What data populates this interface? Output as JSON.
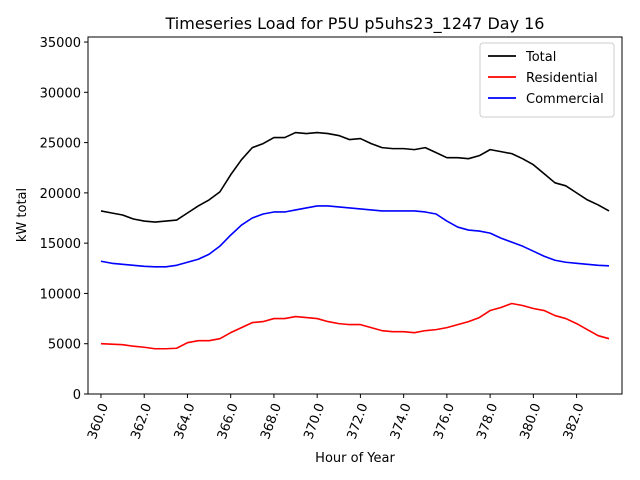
{
  "chart_data": {
    "type": "line",
    "title": "Timeseries Load for P5U p5uhs23_1247  Day 16",
    "xlabel": "Hour of Year",
    "ylabel": "kW total",
    "xlim": [
      359.4,
      384.1
    ],
    "ylim": [
      0,
      35500
    ],
    "xticks": [
      360,
      362,
      364,
      366,
      368,
      370,
      372,
      374,
      376,
      378,
      380,
      382
    ],
    "xtick_labels": [
      "360.0",
      "362.0",
      "364.0",
      "366.0",
      "368.0",
      "370.0",
      "372.0",
      "374.0",
      "376.0",
      "378.0",
      "380.0",
      "382.0"
    ],
    "yticks": [
      0,
      5000,
      10000,
      15000,
      20000,
      25000,
      30000,
      35000
    ],
    "ytick_labels": [
      "0",
      "5000",
      "10000",
      "15000",
      "20000",
      "25000",
      "30000",
      "35000"
    ],
    "legend_position": "top-right",
    "x": [
      360,
      360.5,
      361,
      361.5,
      362,
      362.5,
      363,
      363.5,
      364,
      364.5,
      365,
      365.5,
      366,
      366.5,
      367,
      367.5,
      368,
      368.5,
      369,
      369.5,
      370,
      370.5,
      371,
      371.5,
      372,
      372.5,
      373,
      373.5,
      374,
      374.5,
      375,
      375.5,
      376,
      376.5,
      377,
      377.5,
      378,
      378.5,
      379,
      379.5,
      380,
      380.5,
      381,
      381.5,
      382,
      382.5,
      383,
      383.5
    ],
    "series": [
      {
        "name": "Total",
        "color": "#000000",
        "values": [
          18200,
          18000,
          17800,
          17400,
          17200,
          17100,
          17200,
          17300,
          18000,
          18700,
          19300,
          20100,
          21800,
          23300,
          24500,
          24900,
          25500,
          25500,
          26000,
          25900,
          26000,
          25900,
          25700,
          25300,
          25400,
          24900,
          24500,
          24400,
          24400,
          24300,
          24500,
          24000,
          23500,
          23500,
          23400,
          23700,
          24300,
          24100,
          23900,
          23400,
          22800,
          21900,
          21000,
          20700,
          20000,
          19300,
          18800,
          18200
        ]
      },
      {
        "name": "Residential",
        "color": "#ff0000",
        "values": [
          5000,
          4950,
          4900,
          4750,
          4650,
          4500,
          4500,
          4550,
          5100,
          5300,
          5300,
          5500,
          6100,
          6600,
          7100,
          7200,
          7500,
          7500,
          7700,
          7600,
          7500,
          7200,
          7000,
          6900,
          6900,
          6600,
          6300,
          6200,
          6200,
          6100,
          6300,
          6400,
          6600,
          6900,
          7200,
          7600,
          8300,
          8600,
          9000,
          8800,
          8500,
          8300,
          7800,
          7500,
          7000,
          6400,
          5800,
          5500
        ]
      },
      {
        "name": "Commercial",
        "color": "#0000ff",
        "values": [
          13200,
          13000,
          12900,
          12800,
          12700,
          12650,
          12650,
          12800,
          13100,
          13400,
          13900,
          14700,
          15800,
          16800,
          17500,
          17900,
          18100,
          18100,
          18300,
          18500,
          18700,
          18700,
          18600,
          18500,
          18400,
          18300,
          18200,
          18200,
          18200,
          18200,
          18100,
          17900,
          17200,
          16600,
          16300,
          16200,
          16000,
          15500,
          15100,
          14700,
          14200,
          13700,
          13300,
          13100,
          13000,
          12900,
          12800,
          12750
        ]
      }
    ]
  }
}
